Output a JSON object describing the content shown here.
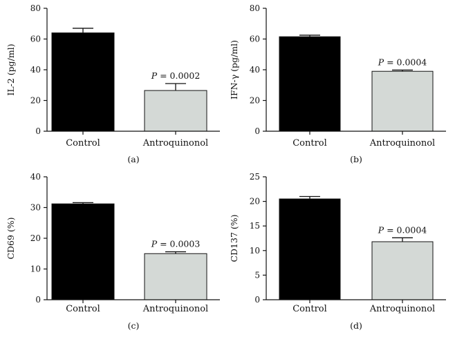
{
  "chart_data": [
    {
      "type": "bar",
      "panel_label": "(a)",
      "categories": [
        "Control",
        "Antroquinonol"
      ],
      "values": [
        64,
        26.5
      ],
      "errors": [
        3,
        4.5
      ],
      "ylabel": "IL-2 (pg/ml)",
      "ylim": [
        0,
        80
      ],
      "yticks": [
        0,
        20,
        40,
        60,
        80
      ],
      "annotation": "P = 0.0002",
      "colors": [
        "#000000",
        "#d4d9d6"
      ]
    },
    {
      "type": "bar",
      "panel_label": "(b)",
      "categories": [
        "Control",
        "Antroquinonol"
      ],
      "values": [
        61.5,
        39
      ],
      "errors": [
        1,
        0.8
      ],
      "ylabel": "IFN-γ (pg/ml)",
      "ylim": [
        0,
        80
      ],
      "yticks": [
        0,
        20,
        40,
        60,
        80
      ],
      "annotation": "P = 0.0004",
      "colors": [
        "#000000",
        "#d4d9d6"
      ]
    },
    {
      "type": "bar",
      "panel_label": "(c)",
      "categories": [
        "Control",
        "Antroquinonol"
      ],
      "values": [
        31.2,
        15
      ],
      "errors": [
        0.4,
        0.6
      ],
      "ylabel": "CD69 (%)",
      "ylim": [
        0,
        40
      ],
      "yticks": [
        0,
        10,
        20,
        30,
        40
      ],
      "annotation": "P = 0.0003",
      "colors": [
        "#000000",
        "#d4d9d6"
      ]
    },
    {
      "type": "bar",
      "panel_label": "(d)",
      "categories": [
        "Control",
        "Antroquinonol"
      ],
      "values": [
        20.5,
        11.8
      ],
      "errors": [
        0.5,
        0.8
      ],
      "ylabel": "CD137 (%)",
      "ylim": [
        0,
        25
      ],
      "yticks": [
        0,
        5,
        10,
        15,
        20,
        25
      ],
      "annotation": "P = 0.0004",
      "colors": [
        "#000000",
        "#d4d9d6"
      ]
    }
  ]
}
